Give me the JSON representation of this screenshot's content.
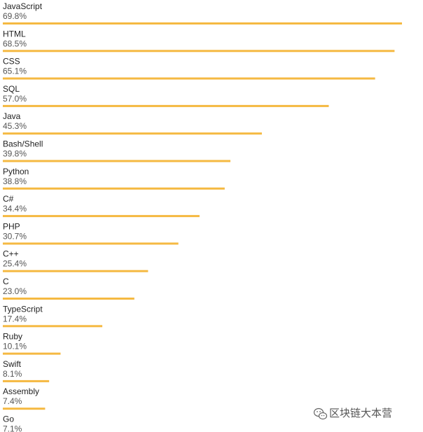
{
  "chart_data": {
    "type": "bar",
    "orientation": "horizontal",
    "bar_color": "#f5b942",
    "value_suffix": "%",
    "xlim": [
      0,
      70
    ],
    "categories": [
      "JavaScript",
      "HTML",
      "CSS",
      "SQL",
      "Java",
      "Bash/Shell",
      "Python",
      "C#",
      "PHP",
      "C++",
      "C",
      "TypeScript",
      "Ruby",
      "Swift",
      "Assembly",
      "Go"
    ],
    "values": [
      69.8,
      68.5,
      65.1,
      57.0,
      45.3,
      39.8,
      38.8,
      34.4,
      30.7,
      25.4,
      23.0,
      17.4,
      10.1,
      8.1,
      7.4,
      7.1
    ],
    "value_labels": [
      "69.8%",
      "68.5%",
      "65.1%",
      "57.0%",
      "45.3%",
      "39.8%",
      "38.8%",
      "34.4%",
      "30.7%",
      "25.4%",
      "23.0%",
      "17.4%",
      "10.1%",
      "8.1%",
      "7.4%",
      "7.1%"
    ]
  },
  "watermark": {
    "text": "区块链大本营",
    "icon": "wechat-icon"
  }
}
